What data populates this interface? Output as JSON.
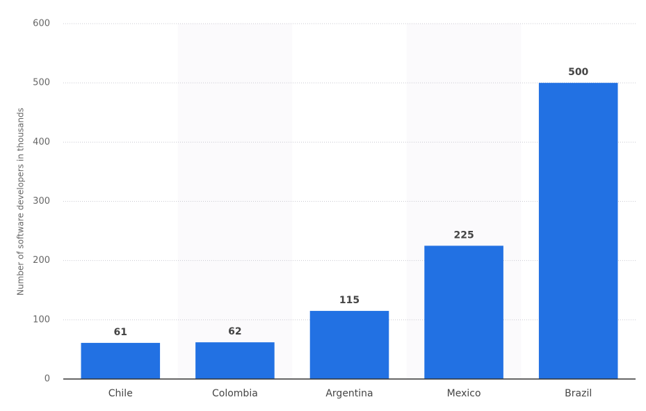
{
  "chart_data": {
    "type": "bar",
    "y_label": "Number of software developers in thousands",
    "categories": [
      "Chile",
      "Colombia",
      "Argentina",
      "Mexico",
      "Brazil"
    ],
    "values": [
      61,
      62,
      115,
      225,
      500
    ],
    "color": "#2271e3",
    "ylim": [
      0,
      600
    ],
    "yticks": [
      0,
      100,
      200,
      300,
      400,
      500,
      600
    ],
    "grid": true
  }
}
